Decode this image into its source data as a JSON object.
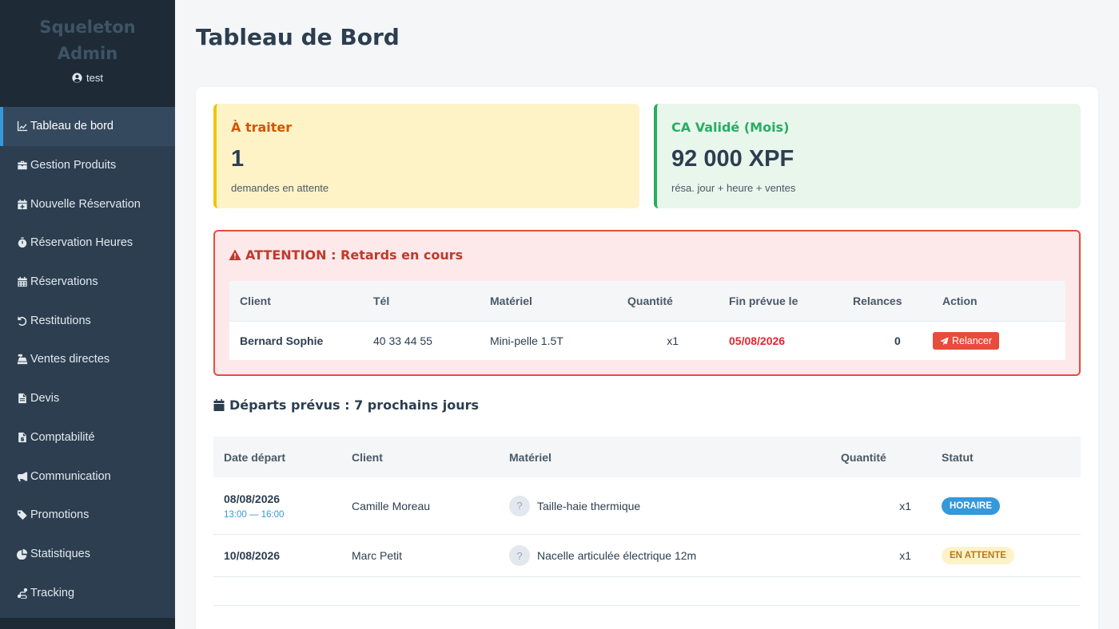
{
  "sidebar": {
    "brand_line1": "Squeleton",
    "brand_line2": "Admin",
    "user": "test",
    "items": [
      {
        "label": "Tableau de bord",
        "icon": "chart-line-icon"
      },
      {
        "label": "Gestion Produits",
        "icon": "briefcase-icon"
      },
      {
        "label": "Nouvelle Réservation",
        "icon": "calendar-plus-icon"
      },
      {
        "label": "Réservation Heures",
        "icon": "stopwatch-icon"
      },
      {
        "label": "Réservations",
        "icon": "calendar-icon"
      },
      {
        "label": "Restitutions",
        "icon": "undo-icon"
      },
      {
        "label": "Ventes directes",
        "icon": "cash-register-icon"
      },
      {
        "label": "Devis",
        "icon": "file-icon"
      },
      {
        "label": "Comptabilité",
        "icon": "file-invoice-icon"
      },
      {
        "label": "Communication",
        "icon": "bullhorn-icon"
      },
      {
        "label": "Promotions",
        "icon": "tags-icon"
      },
      {
        "label": "Statistiques",
        "icon": "chart-pie-icon"
      },
      {
        "label": "Tracking",
        "icon": "route-icon"
      }
    ]
  },
  "page": {
    "title": "Tableau de Bord"
  },
  "kpis": {
    "pending": {
      "title": "À traiter",
      "value": "1",
      "sub": "demandes en attente"
    },
    "revenue": {
      "title": "CA Validé (Mois)",
      "value": "92 000 XPF",
      "sub": "résa. jour + heure + ventes"
    }
  },
  "alert": {
    "title": "ATTENTION : Retards en cours",
    "headers": {
      "client": "Client",
      "tel": "Tél",
      "materiel": "Matériel",
      "quantite": "Quantité",
      "fin": "Fin prévue le",
      "relances": "Relances",
      "action": "Action"
    },
    "rows": [
      {
        "client": "Bernard Sophie",
        "tel": "40 33 44 55",
        "materiel": "Mini-pelle 1.5T",
        "quantite": "x1",
        "fin": "05/08/2026",
        "relances": "0",
        "action": "Relancer"
      }
    ]
  },
  "departures": {
    "title": "Départs prévus : 7 prochains jours",
    "headers": {
      "date": "Date départ",
      "client": "Client",
      "materiel": "Matériel",
      "quantite": "Quantité",
      "statut": "Statut"
    },
    "rows": [
      {
        "date": "08/08/2026",
        "time": "13:00 — 16:00",
        "client": "Camille Moreau",
        "materiel": "Taille-haie thermique",
        "quantite": "x1",
        "statut": "HORAIRE"
      },
      {
        "date": "10/08/2026",
        "time": "",
        "client": "Marc Petit",
        "materiel": "Nacelle articulée électrique 12m",
        "quantite": "x1",
        "statut": "EN ATTENTE"
      }
    ]
  },
  "colors": {
    "sidebar": "#2c3e50",
    "accent": "#3498db",
    "danger": "#e74c3c",
    "warning": "#f1c40f",
    "success": "#27ae60"
  }
}
